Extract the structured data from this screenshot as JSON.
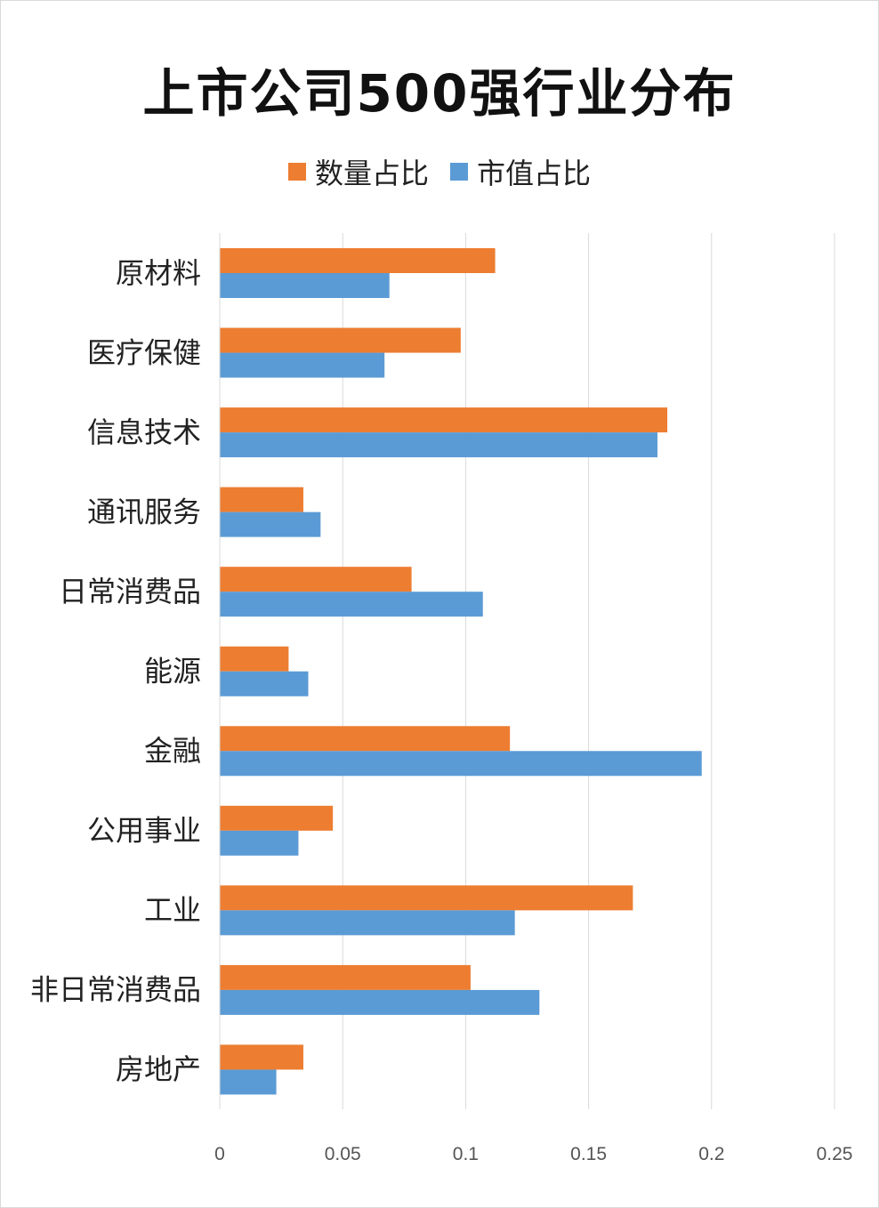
{
  "chart_data": {
    "type": "bar",
    "orientation": "horizontal",
    "title": "上市公司500强行业分布",
    "categories": [
      "原材料",
      "医疗保健",
      "信息技术",
      "通讯服务",
      "日常消费品",
      "能源",
      "金融",
      "公用事业",
      "工业",
      "非日常消费品",
      "房地产"
    ],
    "series": [
      {
        "name": "数量占比",
        "color": "#ED7D31",
        "values": [
          0.112,
          0.098,
          0.182,
          0.034,
          0.078,
          0.028,
          0.118,
          0.046,
          0.168,
          0.102,
          0.034
        ]
      },
      {
        "name": "市值占比",
        "color": "#5B9BD5",
        "values": [
          0.069,
          0.067,
          0.178,
          0.041,
          0.107,
          0.036,
          0.196,
          0.032,
          0.12,
          0.13,
          0.023
        ]
      }
    ],
    "xlim": [
      0,
      0.25
    ],
    "xticks": [
      "0",
      "0.05",
      "0.1",
      "0.15",
      "0.2",
      "0.25"
    ],
    "xtick_values": [
      0,
      0.05,
      0.1,
      0.15,
      0.2,
      0.25
    ],
    "grid": true,
    "legend_position": "top-center"
  }
}
